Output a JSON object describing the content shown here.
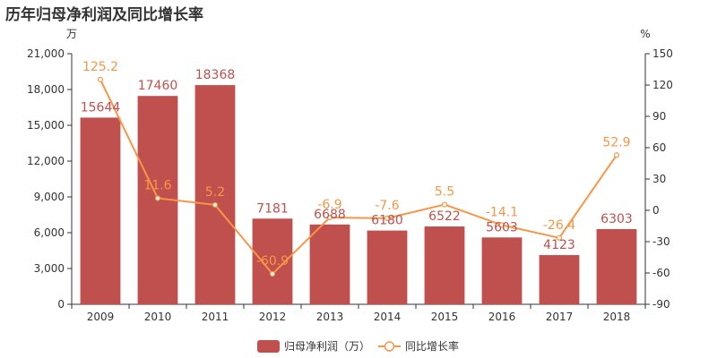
{
  "chart_data": {
    "type": "bar",
    "title": "历年归母净利润及同比增长率",
    "categories": [
      "2009",
      "2010",
      "2011",
      "2012",
      "2013",
      "2014",
      "2015",
      "2016",
      "2017",
      "2018"
    ],
    "series": [
      {
        "name": "归母净利润（万）",
        "type": "bar",
        "axis": "left",
        "values": [
          15644,
          17460,
          18368,
          7181,
          6688,
          6180,
          6522,
          5603,
          4123,
          6303
        ],
        "color": "#c0504d"
      },
      {
        "name": "同比增长率",
        "type": "line",
        "axis": "right",
        "values": [
          125.2,
          11.6,
          5.2,
          -60.9,
          -6.9,
          -7.6,
          5.5,
          -14.1,
          -26.4,
          52.9
        ],
        "color": "#f79646"
      }
    ],
    "y_left": {
      "unit": "万",
      "range": [
        0,
        21000
      ],
      "ticks": [
        "0",
        "3,000",
        "6,000",
        "9,000",
        "12,000",
        "15,000",
        "18,000",
        "21,000"
      ]
    },
    "y_right": {
      "unit": "%",
      "range": [
        -90,
        150
      ],
      "ticks": [
        "-90",
        "-60",
        "-30",
        "0",
        "30",
        "60",
        "90",
        "120",
        "150"
      ]
    },
    "grid": false,
    "legend_position": "bottom-center",
    "bar_label_color": "#c0504d",
    "line_label_color": "#f79646",
    "axis_color": "#333333"
  }
}
